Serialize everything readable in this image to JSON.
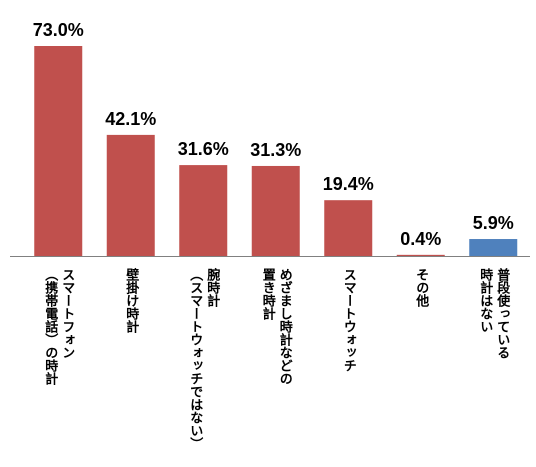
{
  "chart_data": {
    "type": "bar",
    "title": "",
    "xlabel": "",
    "ylabel": "",
    "ylim": [
      0,
      75
    ],
    "grid": false,
    "legend": "none",
    "value_suffix": "%",
    "categories": [
      [
        "スマートフォン",
        "（携帯電話）の時計"
      ],
      [
        "壁掛け時計"
      ],
      [
        "腕時計",
        "（スマートウォッチではない）"
      ],
      [
        "めざまし時計などの",
        "置き時計"
      ],
      [
        "スマートウォッチ"
      ],
      [
        "その他"
      ],
      [
        "普段使っている",
        "時計はない"
      ]
    ],
    "values": [
      73.0,
      42.1,
      31.6,
      31.3,
      19.4,
      0.4,
      5.9
    ],
    "data_labels": [
      "73.0%",
      "42.1%",
      "31.6%",
      "31.3%",
      "19.4%",
      "0.4%",
      "5.9%"
    ],
    "colors": {
      "primary": "#c0504d",
      "highlight": "#4f81bd",
      "axis": "#808080"
    },
    "highlight_index": 6
  }
}
